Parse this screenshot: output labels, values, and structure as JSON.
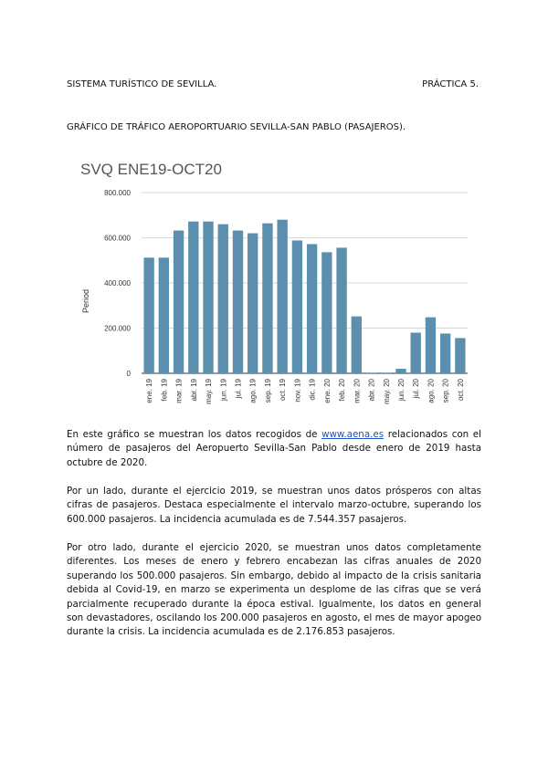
{
  "header": {
    "left": "SISTEMA TURÍSTICO DE SEVILLA.",
    "right": "PRÁCTICA 5."
  },
  "subtitle": "GRÁFICO DE TRÁFICO AEROPORTUARIO SEVILLA-SAN PABLO (PASAJEROS).",
  "chart_data": {
    "type": "bar",
    "title": "SVQ ENE19-OCT20",
    "ylabel": "Period",
    "xlabel": "",
    "ylim": [
      0,
      800000
    ],
    "yticks": [
      0,
      200000,
      400000,
      600000,
      800000
    ],
    "ytick_labels": [
      "0",
      "200.000",
      "400.000",
      "600.000",
      "800.000"
    ],
    "grid": true,
    "color": "#5b8fad",
    "categories": [
      "ene. 19",
      "feb. 19",
      "mar. 19",
      "abr. 19",
      "may. 19",
      "jun. 19",
      "jul. 19",
      "ago. 19",
      "sep. 19",
      "oct. 19",
      "nov. 19",
      "dic. 19",
      "ene. 20",
      "feb. 20",
      "mar. 20",
      "abr. 20",
      "may. 20",
      "jun. 20",
      "jul. 20",
      "ago. 20",
      "sep. 20",
      "oct. 20"
    ],
    "values": [
      512000,
      512000,
      632000,
      672000,
      672000,
      660000,
      632000,
      620000,
      664000,
      680000,
      588000,
      572000,
      536000,
      556000,
      252000,
      3000,
      3000,
      20000,
      180000,
      248000,
      176000,
      156000
    ]
  },
  "paragraphs": {
    "p1_before": "En este gráfico se muestran los datos recogidos de ",
    "p1_link": "www.aena.es",
    "p1_after": " relacionados con el número de pasajeros del Aeropuerto Sevilla-San Pablo desde enero de 2019 hasta octubre de 2020.",
    "p2": "Por un lado, durante el ejercicio 2019, se muestran unos datos prósperos con altas cifras de pasajeros. Destaca especialmente el intervalo marzo-octubre, superando los 600.000 pasajeros. La incidencia acumulada es de 7.544.357 pasajeros.",
    "p3": "Por otro lado, durante el ejercicio 2020, se muestran unos datos completamente diferentes. Los meses de enero y febrero encabezan las cifras anuales de 2020 superando los 500.000 pasajeros. Sin embargo, debido al impacto de la crisis sanitaria debida al Covid-19, en marzo se experimenta un desplome de las cifras que se verá parcialmente recuperado durante la época estival. Igualmente, los datos en general son devastadores, oscilando los 200.000 pasajeros en agosto, el mes de mayor apogeo durante la crisis. La incidencia acumulada es de 2.176.853 pasajeros."
  }
}
